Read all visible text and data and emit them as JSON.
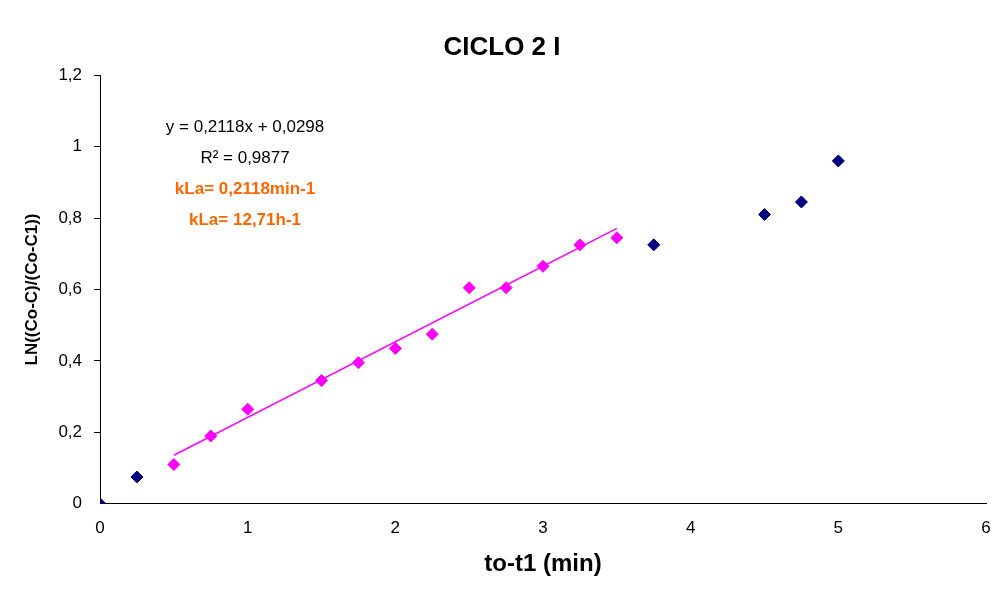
{
  "chart_data": {
    "type": "scatter",
    "title": "CICLO 2 I",
    "xlabel": "to-t1 (min)",
    "ylabel": "LN((Co-C)/(Co-C1))",
    "annotations": [
      "y = 0,2118x + 0,0298",
      "R² = 0,9877",
      "kLa= 0,2118min-1",
      "kLa= 12,71h-1"
    ],
    "series": [
      {
        "color": "#000080",
        "x": [
          0,
          0.25,
          3.75,
          4.5,
          4.75,
          5
        ],
        "values": [
          0,
          0.075,
          0.725,
          0.81,
          0.845,
          0.96
        ]
      },
      {
        "color": "#ff00ff",
        "x": [
          0.5,
          0.75,
          1,
          1.5,
          1.75,
          2,
          2.25,
          2.5,
          2.75,
          3,
          3.25,
          3.5
        ],
        "values": [
          0.11,
          0.19,
          0.265,
          0.345,
          0.395,
          0.435,
          0.475,
          0.605,
          0.605,
          0.665,
          0.725,
          0.745
        ]
      },
      {
        "type": "line",
        "color": "#ff00ff",
        "x": [
          0.5,
          3.5
        ],
        "values": [
          0.136,
          0.771
        ],
        "marker": "none"
      }
    ],
    "xlim": [
      0,
      6
    ],
    "xticks": [
      0,
      1,
      2,
      3,
      4,
      5,
      6
    ],
    "ylim": [
      0,
      1.2
    ],
    "yticks": [
      0,
      {
        "value": 0.2,
        "label": "0,2"
      },
      {
        "value": 0.4,
        "label": "0,4"
      },
      {
        "value": 0.6,
        "label": "0,6"
      },
      {
        "value": 0.8,
        "label": "0,8"
      },
      1,
      {
        "value": 1.2,
        "label": "1,2"
      }
    ],
    "grid": false,
    "legend": false,
    "marker": "diamond"
  }
}
